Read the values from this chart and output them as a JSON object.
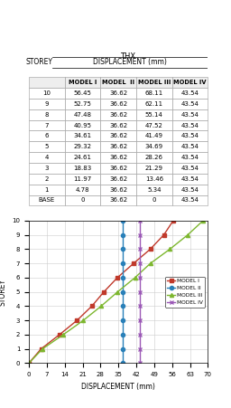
{
  "title_top": "THX",
  "storeys": [
    "BASE",
    "1",
    "2",
    "3",
    "4",
    "5",
    "6",
    "7",
    "8",
    "9",
    "10"
  ],
  "model1": [
    0,
    4.78,
    11.97,
    18.83,
    24.61,
    29.32,
    34.61,
    40.95,
    47.48,
    52.75,
    56.45
  ],
  "model2": [
    36.62,
    36.62,
    36.62,
    36.62,
    36.62,
    36.62,
    36.62,
    36.62,
    36.62,
    36.62,
    36.62
  ],
  "model3": [
    0,
    5.34,
    13.46,
    21.29,
    28.26,
    34.69,
    41.49,
    47.52,
    55.14,
    62.11,
    68.11
  ],
  "model4": [
    43.54,
    43.54,
    43.54,
    43.54,
    43.54,
    43.54,
    43.54,
    43.54,
    43.54,
    43.54,
    43.54
  ],
  "storey_levels": [
    0,
    1,
    2,
    3,
    4,
    5,
    6,
    7,
    8,
    9,
    10
  ],
  "colors": {
    "model1": "#c0392b",
    "model2": "#2980b9",
    "model3": "#7db72f",
    "model4": "#9b59b6"
  },
  "markers": {
    "model1": "s",
    "model2": "o",
    "model3": "^",
    "model4": "x"
  },
  "legend_labels": [
    "MODEL I",
    "MODEL II",
    "MODEL III",
    "MODEL IV"
  ],
  "xlabel": "DISPLACEMENT (mm)",
  "ylabel": "STOREY",
  "xlim": [
    0,
    70
  ],
  "xticks": [
    0,
    7,
    14,
    21,
    28,
    35,
    42,
    49,
    56,
    63,
    70
  ],
  "ylim": [
    0,
    10
  ],
  "yticks": [
    0,
    1,
    2,
    3,
    4,
    5,
    6,
    7,
    8,
    9,
    10
  ],
  "grid_color": "#cccccc"
}
